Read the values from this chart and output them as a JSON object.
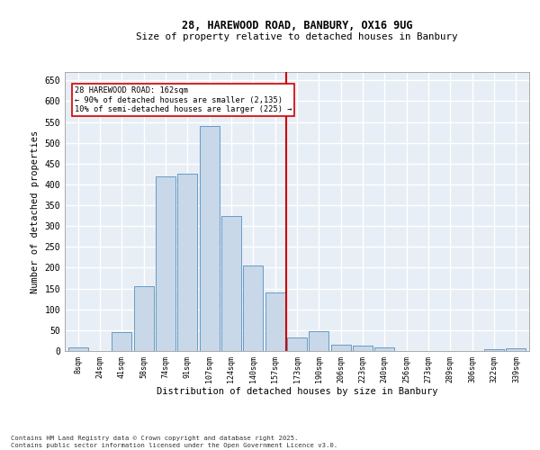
{
  "title1": "28, HAREWOOD ROAD, BANBURY, OX16 9UG",
  "title2": "Size of property relative to detached houses in Banbury",
  "xlabel": "Distribution of detached houses by size in Banbury",
  "ylabel": "Number of detached properties",
  "categories": [
    "8sqm",
    "24sqm",
    "41sqm",
    "58sqm",
    "74sqm",
    "91sqm",
    "107sqm",
    "124sqm",
    "140sqm",
    "157sqm",
    "173sqm",
    "190sqm",
    "206sqm",
    "223sqm",
    "240sqm",
    "256sqm",
    "273sqm",
    "289sqm",
    "306sqm",
    "322sqm",
    "339sqm"
  ],
  "values": [
    8,
    0,
    45,
    155,
    420,
    425,
    540,
    325,
    205,
    140,
    32,
    48,
    15,
    13,
    8,
    0,
    0,
    0,
    0,
    5,
    7
  ],
  "bar_color": "#c8d8e8",
  "bar_edge_color": "#5590c0",
  "vline_x_index": 9.5,
  "vline_color": "#cc0000",
  "annotation_text": "28 HAREWOOD ROAD: 162sqm\n← 90% of detached houses are smaller (2,135)\n10% of semi-detached houses are larger (225) →",
  "annotation_box_color": "#cc0000",
  "bg_color": "#e8eef5",
  "grid_color": "#ffffff",
  "ylim": [
    0,
    670
  ],
  "yticks": [
    0,
    50,
    100,
    150,
    200,
    250,
    300,
    350,
    400,
    450,
    500,
    550,
    600,
    650
  ],
  "footer_line1": "Contains HM Land Registry data © Crown copyright and database right 2025.",
  "footer_line2": "Contains public sector information licensed under the Open Government Licence v3.0."
}
